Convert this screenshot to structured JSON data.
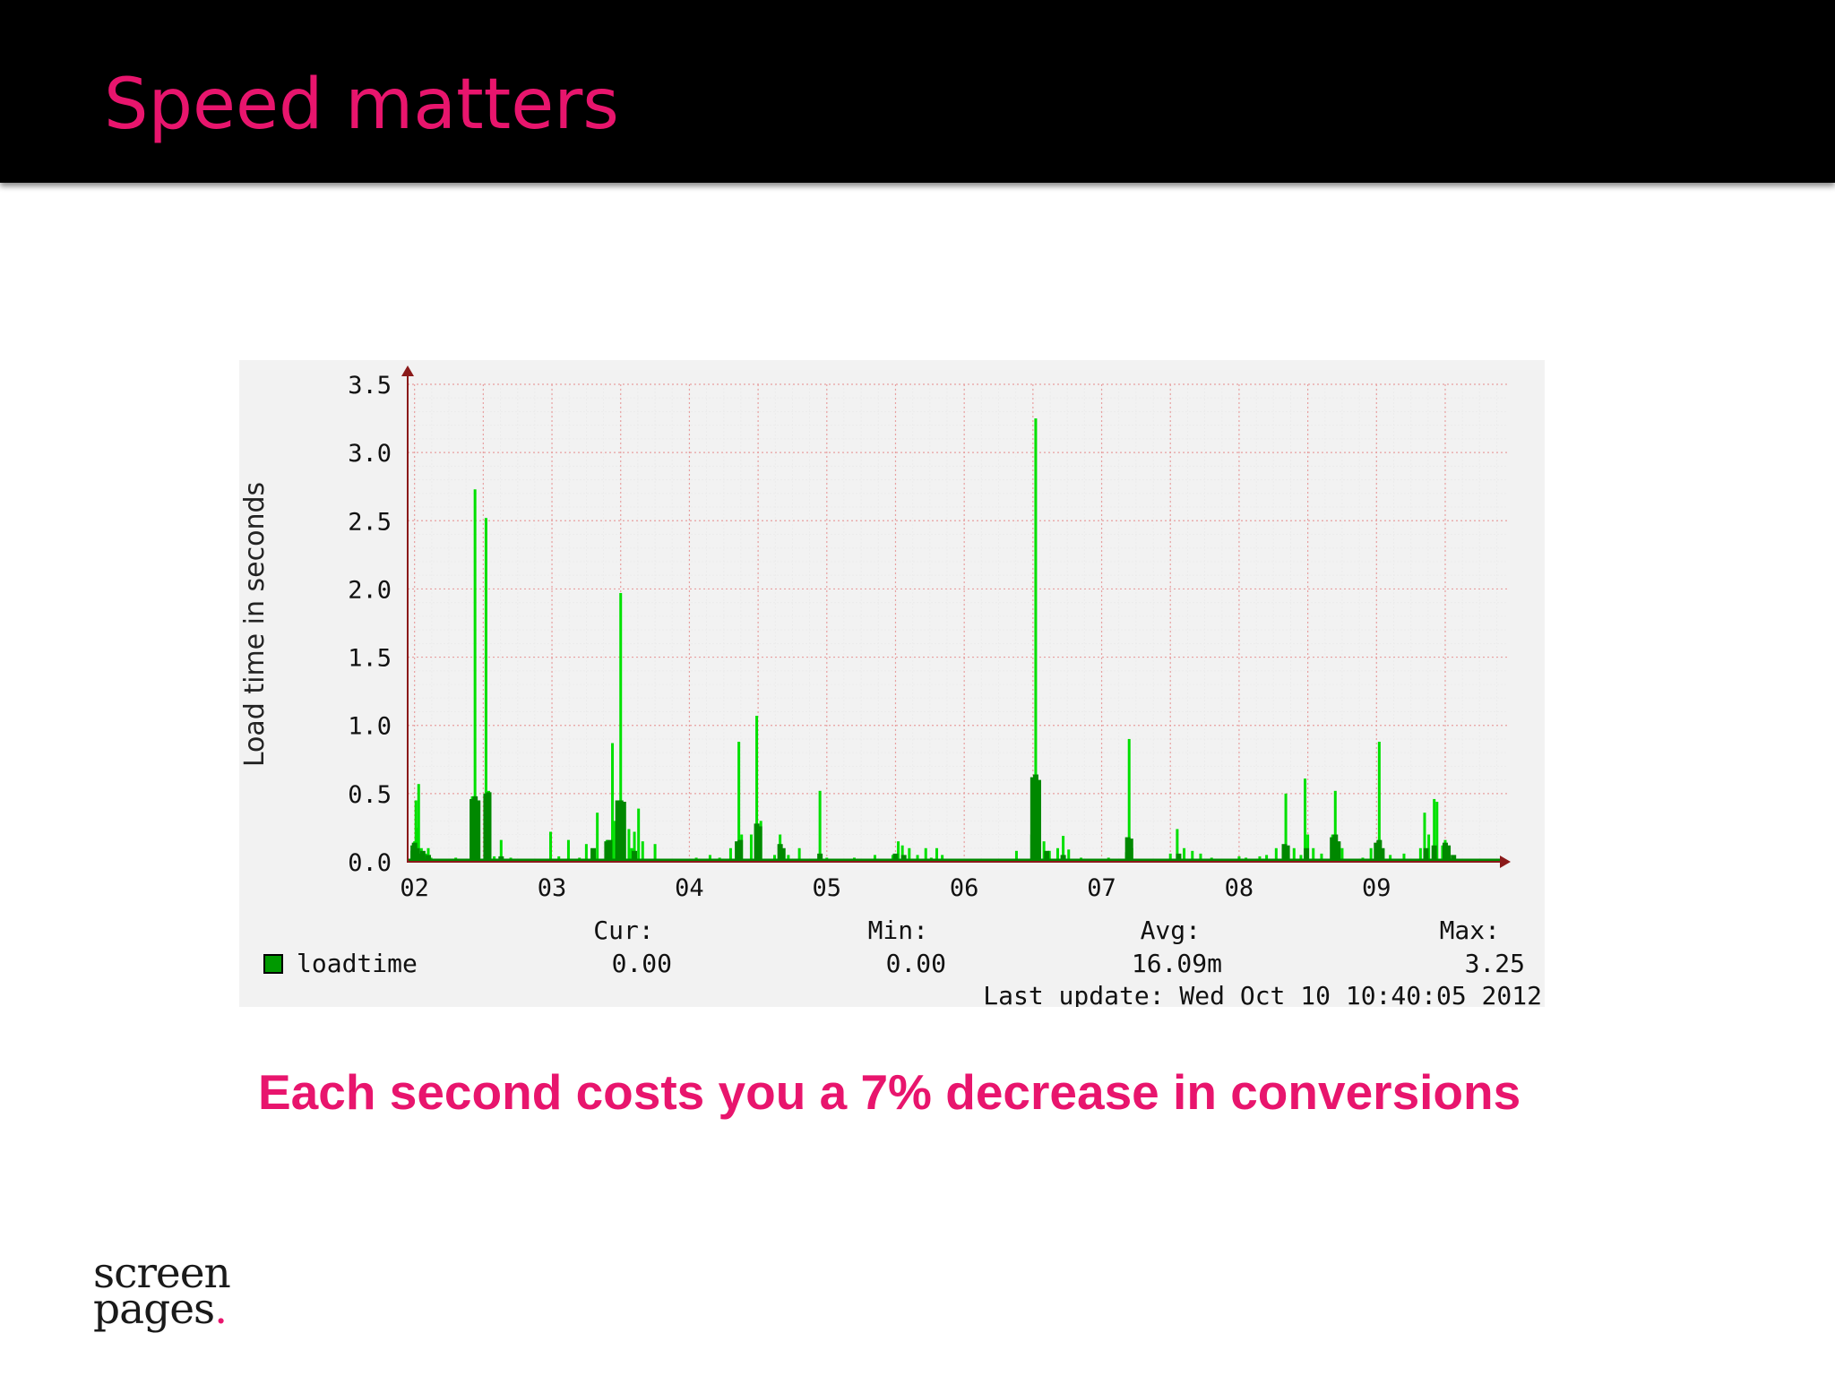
{
  "slide": {
    "title": "Speed matters",
    "subtitle": "Each second costs you a 7% decrease in conversions",
    "logo": {
      "line1": "screen",
      "line2": "pages",
      "dot": "."
    },
    "colors": {
      "title": "#e8156d",
      "header_bg": "#000000",
      "accent_dot": "#e8156d"
    }
  },
  "chart_data": {
    "type": "bar",
    "ylabel": "Load time in seconds",
    "ylim": [
      0,
      3.5
    ],
    "yticks": [
      "0.0",
      "0.5",
      "1.0",
      "1.5",
      "2.0",
      "2.5",
      "3.0",
      "3.5"
    ],
    "xlim": [
      1.95,
      9.95
    ],
    "xticks": [
      {
        "x": 2,
        "label": "02"
      },
      {
        "x": 3,
        "label": "03"
      },
      {
        "x": 4,
        "label": "04"
      },
      {
        "x": 5,
        "label": "05"
      },
      {
        "x": 6,
        "label": "06"
      },
      {
        "x": 7,
        "label": "07"
      },
      {
        "x": 8,
        "label": "08"
      },
      {
        "x": 9,
        "label": "09"
      }
    ],
    "grid": true,
    "colors": {
      "max": "#00e000",
      "avg": "#008800",
      "axis": "#8b1a1a",
      "grid": "#e8a0a0",
      "legend_swatch": "#009900"
    },
    "series": [
      {
        "name": "loadtime",
        "type": "max",
        "points": [
          [
            1.98,
            0.08
          ],
          [
            2.0,
            0.15
          ],
          [
            2.01,
            0.45
          ],
          [
            2.02,
            0.25
          ],
          [
            2.03,
            0.57
          ],
          [
            2.05,
            0.1
          ],
          [
            2.08,
            0.06
          ],
          [
            2.1,
            0.1
          ],
          [
            2.12,
            0.03
          ],
          [
            2.2,
            0.02
          ],
          [
            2.3,
            0.03
          ],
          [
            2.42,
            0.48
          ],
          [
            2.44,
            2.73
          ],
          [
            2.46,
            0.3
          ],
          [
            2.52,
            2.52
          ],
          [
            2.54,
            0.52
          ],
          [
            2.58,
            0.04
          ],
          [
            2.63,
            0.16
          ],
          [
            2.7,
            0.03
          ],
          [
            2.8,
            0.02
          ],
          [
            2.9,
            0.02
          ],
          [
            2.99,
            0.22
          ],
          [
            3.05,
            0.04
          ],
          [
            3.12,
            0.16
          ],
          [
            3.2,
            0.03
          ],
          [
            3.25,
            0.13
          ],
          [
            3.33,
            0.36
          ],
          [
            3.4,
            0.16
          ],
          [
            3.44,
            0.87
          ],
          [
            3.46,
            0.3
          ],
          [
            3.49,
            0.45
          ],
          [
            3.5,
            1.97
          ],
          [
            3.52,
            0.4
          ],
          [
            3.56,
            0.24
          ],
          [
            3.58,
            0.1
          ],
          [
            3.6,
            0.22
          ],
          [
            3.63,
            0.39
          ],
          [
            3.66,
            0.15
          ],
          [
            3.75,
            0.13
          ],
          [
            3.9,
            0.02
          ],
          [
            4.05,
            0.03
          ],
          [
            4.15,
            0.05
          ],
          [
            4.22,
            0.03
          ],
          [
            4.3,
            0.1
          ],
          [
            4.36,
            0.88
          ],
          [
            4.38,
            0.2
          ],
          [
            4.45,
            0.2
          ],
          [
            4.49,
            1.07
          ],
          [
            4.52,
            0.3
          ],
          [
            4.62,
            0.05
          ],
          [
            4.66,
            0.2
          ],
          [
            4.72,
            0.05
          ],
          [
            4.8,
            0.1
          ],
          [
            4.85,
            0.02
          ],
          [
            4.95,
            0.52
          ],
          [
            5.0,
            0.03
          ],
          [
            5.1,
            0.02
          ],
          [
            5.2,
            0.03
          ],
          [
            5.35,
            0.05
          ],
          [
            5.48,
            0.05
          ],
          [
            5.52,
            0.15
          ],
          [
            5.55,
            0.12
          ],
          [
            5.6,
            0.1
          ],
          [
            5.66,
            0.05
          ],
          [
            5.72,
            0.1
          ],
          [
            5.76,
            0.03
          ],
          [
            5.8,
            0.1
          ],
          [
            5.84,
            0.05
          ],
          [
            5.95,
            0.02
          ],
          [
            6.1,
            0.02
          ],
          [
            6.25,
            0.02
          ],
          [
            6.38,
            0.08
          ],
          [
            6.49,
            0.2
          ],
          [
            6.52,
            3.25
          ],
          [
            6.54,
            0.35
          ],
          [
            6.58,
            0.15
          ],
          [
            6.62,
            0.08
          ],
          [
            6.68,
            0.1
          ],
          [
            6.72,
            0.19
          ],
          [
            6.76,
            0.09
          ],
          [
            6.85,
            0.03
          ],
          [
            6.95,
            0.02
          ],
          [
            7.05,
            0.03
          ],
          [
            7.18,
            0.07
          ],
          [
            7.2,
            0.9
          ],
          [
            7.22,
            0.1
          ],
          [
            7.4,
            0.02
          ],
          [
            7.5,
            0.06
          ],
          [
            7.55,
            0.24
          ],
          [
            7.6,
            0.1
          ],
          [
            7.66,
            0.08
          ],
          [
            7.72,
            0.06
          ],
          [
            7.8,
            0.03
          ],
          [
            7.9,
            0.02
          ],
          [
            8.0,
            0.04
          ],
          [
            8.05,
            0.03
          ],
          [
            8.15,
            0.04
          ],
          [
            8.2,
            0.05
          ],
          [
            8.27,
            0.1
          ],
          [
            8.32,
            0.1
          ],
          [
            8.34,
            0.5
          ],
          [
            8.4,
            0.1
          ],
          [
            8.45,
            0.05
          ],
          [
            8.48,
            0.61
          ],
          [
            8.5,
            0.2
          ],
          [
            8.54,
            0.1
          ],
          [
            8.6,
            0.06
          ],
          [
            8.68,
            0.2
          ],
          [
            8.7,
            0.52
          ],
          [
            8.75,
            0.1
          ],
          [
            8.8,
            0.02
          ],
          [
            8.9,
            0.03
          ],
          [
            8.96,
            0.1
          ],
          [
            9.0,
            0.12
          ],
          [
            9.02,
            0.88
          ],
          [
            9.1,
            0.05
          ],
          [
            9.2,
            0.06
          ],
          [
            9.32,
            0.1
          ],
          [
            9.35,
            0.36
          ],
          [
            9.38,
            0.2
          ],
          [
            9.42,
            0.46
          ],
          [
            9.44,
            0.44
          ],
          [
            9.48,
            0.12
          ],
          [
            9.5,
            0.16
          ],
          [
            9.52,
            0.1
          ],
          [
            9.56,
            0.04
          ],
          [
            9.62,
            0.02
          ],
          [
            9.7,
            0.01
          ],
          [
            9.8,
            0.01
          ]
        ]
      },
      {
        "name": "loadtime",
        "type": "avg",
        "points": [
          [
            1.99,
            0.12
          ],
          [
            2.0,
            0.14
          ],
          [
            2.02,
            0.1
          ],
          [
            2.04,
            0.06
          ],
          [
            2.06,
            0.08
          ],
          [
            2.1,
            0.05
          ],
          [
            2.42,
            0.46
          ],
          [
            2.44,
            0.48
          ],
          [
            2.46,
            0.45
          ],
          [
            2.52,
            0.5
          ],
          [
            2.54,
            0.51
          ],
          [
            2.63,
            0.04
          ],
          [
            3.3,
            0.1
          ],
          [
            3.4,
            0.15
          ],
          [
            3.42,
            0.16
          ],
          [
            3.48,
            0.45
          ],
          [
            3.5,
            0.45
          ],
          [
            3.52,
            0.44
          ],
          [
            3.6,
            0.08
          ],
          [
            4.35,
            0.15
          ],
          [
            4.37,
            0.16
          ],
          [
            4.49,
            0.28
          ],
          [
            4.51,
            0.26
          ],
          [
            4.66,
            0.13
          ],
          [
            4.68,
            0.1
          ],
          [
            4.95,
            0.06
          ],
          [
            5.5,
            0.06
          ],
          [
            5.56,
            0.05
          ],
          [
            6.0,
            0.02
          ],
          [
            6.5,
            0.62
          ],
          [
            6.52,
            0.64
          ],
          [
            6.54,
            0.6
          ],
          [
            6.6,
            0.08
          ],
          [
            6.72,
            0.05
          ],
          [
            7.19,
            0.18
          ],
          [
            7.21,
            0.17
          ],
          [
            7.56,
            0.06
          ],
          [
            8.33,
            0.13
          ],
          [
            8.35,
            0.12
          ],
          [
            8.49,
            0.1
          ],
          [
            8.68,
            0.18
          ],
          [
            8.7,
            0.2
          ],
          [
            8.72,
            0.15
          ],
          [
            9.0,
            0.14
          ],
          [
            9.02,
            0.16
          ],
          [
            9.04,
            0.1
          ],
          [
            9.36,
            0.1
          ],
          [
            9.42,
            0.12
          ],
          [
            9.5,
            0.14
          ],
          [
            9.52,
            0.12
          ],
          [
            9.56,
            0.05
          ]
        ]
      }
    ],
    "legend": {
      "label": "loadtime",
      "stats": [
        {
          "label": "Cur:",
          "value": "0.00"
        },
        {
          "label": "Min:",
          "value": "0.00"
        },
        {
          "label": "Avg:",
          "value": "16.09m"
        },
        {
          "label": "Max:",
          "value": "3.25"
        }
      ],
      "last_update": "Last update: Wed Oct 10 10:40:05 2012"
    }
  }
}
